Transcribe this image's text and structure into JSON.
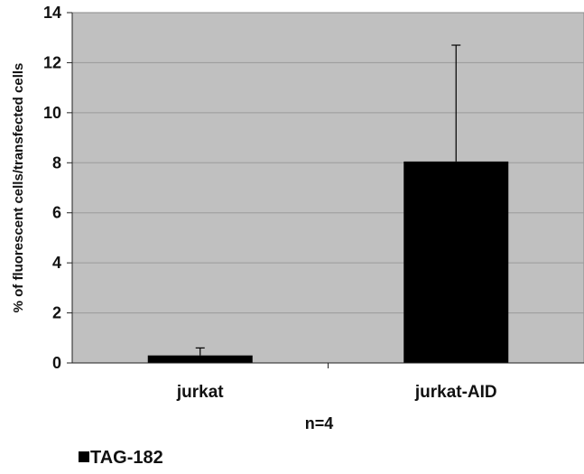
{
  "chart_data": {
    "type": "bar",
    "categories": [
      "jurkat",
      "jurkat-AID"
    ],
    "series": [
      {
        "name": "TAG-182",
        "values": [
          0.3,
          8.05
        ],
        "error_plus": [
          0.3,
          4.65
        ]
      }
    ],
    "xlabel": "n=4",
    "ylabel": "% of fluorescent cells/transfected cells",
    "ylim": [
      0,
      14
    ],
    "yticks": [
      0,
      2,
      4,
      6,
      8,
      10,
      12,
      14
    ],
    "grid": true,
    "legend_position": "bottom-left",
    "colors": {
      "plot_background": "#c0c0c0",
      "bar": "#000000",
      "gridline": "#9a9a9a"
    }
  }
}
